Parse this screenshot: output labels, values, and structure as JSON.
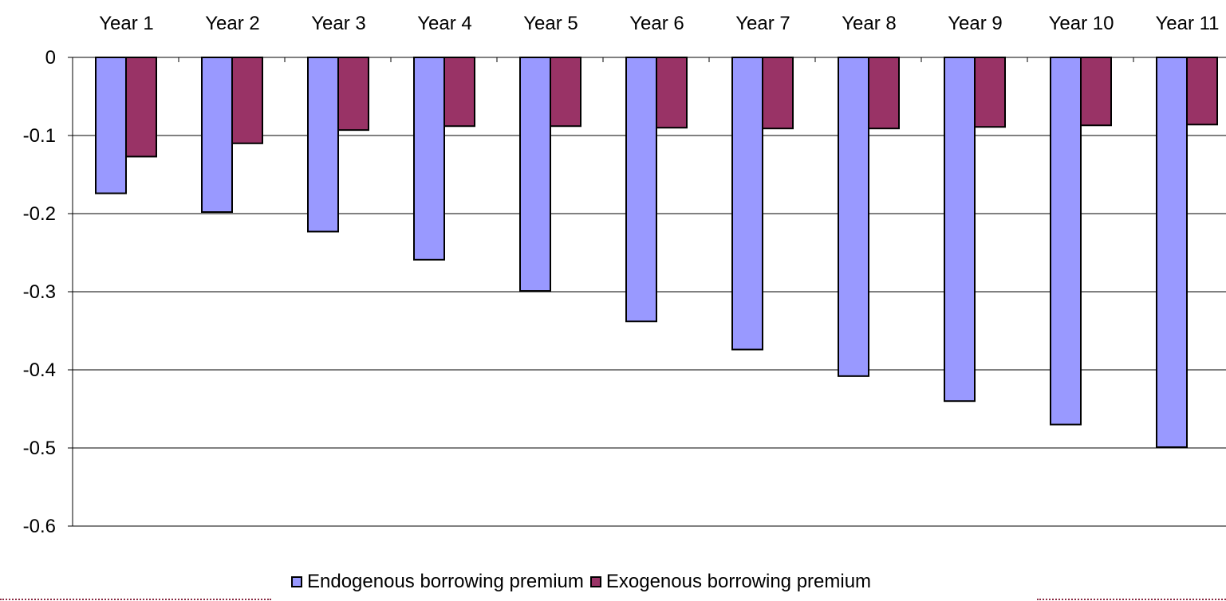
{
  "chart_data": {
    "type": "bar",
    "title": "",
    "xlabel": "",
    "ylabel": "",
    "categories": [
      "Year 1",
      "Year 2",
      "Year 3",
      "Year 4",
      "Year 5",
      "Year 6",
      "Year 7",
      "Year 8",
      "Year 9",
      "Year 10",
      "Year 11"
    ],
    "series": [
      {
        "name": "Endogenous borrowing premium",
        "color": "#9999ff",
        "values": [
          -0.174,
          -0.198,
          -0.223,
          -0.259,
          -0.299,
          -0.338,
          -0.374,
          -0.408,
          -0.44,
          -0.47,
          -0.499
        ]
      },
      {
        "name": "Exogenous borrowing premium",
        "color": "#993366",
        "values": [
          -0.127,
          -0.11,
          -0.093,
          -0.088,
          -0.088,
          -0.09,
          -0.091,
          -0.091,
          -0.089,
          -0.087,
          -0.086
        ]
      }
    ],
    "ylim": [
      -0.6,
      0
    ],
    "yticks": [
      "0",
      "-0.1",
      "-0.2",
      "-0.3",
      "-0.4",
      "-0.5",
      "-0.6"
    ],
    "ytick_values": [
      0,
      -0.1,
      -0.2,
      -0.3,
      -0.4,
      -0.5,
      -0.6
    ],
    "grid": true,
    "x_axis_position": "top",
    "legend_position": "bottom"
  }
}
